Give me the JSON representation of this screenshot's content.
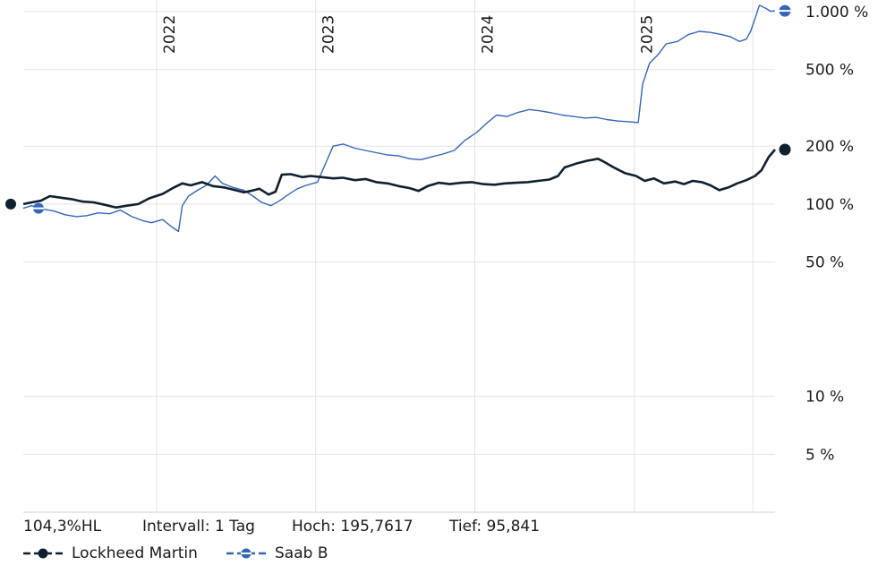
{
  "chart_data": {
    "type": "line",
    "y_scale": "log",
    "y_ticks": [
      {
        "value": 5,
        "label": "5 %"
      },
      {
        "value": 10,
        "label": "10 %"
      },
      {
        "value": 50,
        "label": "50 %"
      },
      {
        "value": 100,
        "label": "100 %"
      },
      {
        "value": 200,
        "label": "200 %"
      },
      {
        "value": 500,
        "label": "500 %"
      },
      {
        "value": 1000,
        "label": "1.000 %"
      }
    ],
    "x_ticks": [
      "2022",
      "2023",
      "2024",
      "2025"
    ],
    "ylim": [
      2.5,
      1150
    ],
    "xlim": [
      "2021-03-01",
      "2025-11-20"
    ],
    "grid": true,
    "series": [
      {
        "name": "Lockheed Martin",
        "color": "#0f2130",
        "points": [
          [
            "2021-03-01",
            100
          ],
          [
            "2021-03-20",
            102
          ],
          [
            "2021-04-10",
            104
          ],
          [
            "2021-05-01",
            110
          ],
          [
            "2021-05-25",
            108
          ],
          [
            "2021-06-20",
            106
          ],
          [
            "2021-07-15",
            103
          ],
          [
            "2021-08-10",
            102
          ],
          [
            "2021-09-05",
            99
          ],
          [
            "2021-09-30",
            96
          ],
          [
            "2021-10-25",
            98
          ],
          [
            "2021-11-20",
            100
          ],
          [
            "2021-12-15",
            107
          ],
          [
            "2022-01-15",
            113
          ],
          [
            "2022-02-10",
            122
          ],
          [
            "2022-03-01",
            128
          ],
          [
            "2022-03-20",
            125
          ],
          [
            "2022-04-15",
            130
          ],
          [
            "2022-05-10",
            124
          ],
          [
            "2022-06-05",
            122
          ],
          [
            "2022-07-01",
            118
          ],
          [
            "2022-07-20",
            115
          ],
          [
            "2022-08-05",
            117
          ],
          [
            "2022-08-25",
            120
          ],
          [
            "2022-09-15",
            112
          ],
          [
            "2022-10-01",
            116
          ],
          [
            "2022-10-15",
            142
          ],
          [
            "2022-11-05",
            143
          ],
          [
            "2022-12-01",
            138
          ],
          [
            "2022-12-20",
            140
          ],
          [
            "2023-01-15",
            138
          ],
          [
            "2023-02-10",
            136
          ],
          [
            "2023-03-05",
            137
          ],
          [
            "2023-04-01",
            133
          ],
          [
            "2023-04-25",
            135
          ],
          [
            "2023-05-20",
            130
          ],
          [
            "2023-06-15",
            128
          ],
          [
            "2023-07-10",
            124
          ],
          [
            "2023-08-05",
            121
          ],
          [
            "2023-08-25",
            117
          ],
          [
            "2023-09-15",
            124
          ],
          [
            "2023-10-10",
            129
          ],
          [
            "2023-11-05",
            127
          ],
          [
            "2023-12-01",
            129
          ],
          [
            "2023-12-25",
            130
          ],
          [
            "2024-01-20",
            127
          ],
          [
            "2024-02-15",
            126
          ],
          [
            "2024-03-10",
            128
          ],
          [
            "2024-04-05",
            129
          ],
          [
            "2024-05-01",
            130
          ],
          [
            "2024-05-25",
            132
          ],
          [
            "2024-06-20",
            134
          ],
          [
            "2024-07-10",
            140
          ],
          [
            "2024-07-25",
            155
          ],
          [
            "2024-08-20",
            162
          ],
          [
            "2024-09-15",
            168
          ],
          [
            "2024-10-10",
            172
          ],
          [
            "2024-10-25",
            165
          ],
          [
            "2024-11-15",
            155
          ],
          [
            "2024-12-10",
            145
          ],
          [
            "2025-01-05",
            140
          ],
          [
            "2025-01-25",
            132
          ],
          [
            "2025-02-15",
            136
          ],
          [
            "2025-03-10",
            128
          ],
          [
            "2025-04-05",
            131
          ],
          [
            "2025-04-25",
            127
          ],
          [
            "2025-05-15",
            132
          ],
          [
            "2025-06-05",
            130
          ],
          [
            "2025-06-25",
            125
          ],
          [
            "2025-07-15",
            118
          ],
          [
            "2025-08-05",
            122
          ],
          [
            "2025-08-25",
            128
          ],
          [
            "2025-09-15",
            133
          ],
          [
            "2025-10-05",
            140
          ],
          [
            "2025-10-20",
            150
          ],
          [
            "2025-11-05",
            175
          ],
          [
            "2025-11-20",
            192
          ]
        ]
      },
      {
        "name": "Saab B",
        "color": "#3366bb",
        "points": [
          [
            "2021-03-01",
            95
          ],
          [
            "2021-03-20",
            98
          ],
          [
            "2021-04-15",
            94
          ],
          [
            "2021-05-10",
            92
          ],
          [
            "2021-06-05",
            88
          ],
          [
            "2021-07-01",
            86
          ],
          [
            "2021-07-25",
            87
          ],
          [
            "2021-08-20",
            90
          ],
          [
            "2021-09-15",
            89
          ],
          [
            "2021-10-10",
            93
          ],
          [
            "2021-11-05",
            86
          ],
          [
            "2021-11-30",
            82
          ],
          [
            "2021-12-20",
            80
          ],
          [
            "2022-01-15",
            83
          ],
          [
            "2022-02-05",
            76
          ],
          [
            "2022-02-20",
            72
          ],
          [
            "2022-03-01",
            98
          ],
          [
            "2022-03-15",
            110
          ],
          [
            "2022-04-05",
            118
          ],
          [
            "2022-04-25",
            125
          ],
          [
            "2022-05-15",
            140
          ],
          [
            "2022-06-01",
            128
          ],
          [
            "2022-06-25",
            122
          ],
          [
            "2022-07-20",
            118
          ],
          [
            "2022-08-10",
            110
          ],
          [
            "2022-08-30",
            102
          ],
          [
            "2022-09-20",
            98
          ],
          [
            "2022-10-10",
            104
          ],
          [
            "2022-10-30",
            112
          ],
          [
            "2022-11-20",
            120
          ],
          [
            "2022-12-10",
            125
          ],
          [
            "2023-01-05",
            130
          ],
          [
            "2023-01-25",
            165
          ],
          [
            "2023-02-10",
            200
          ],
          [
            "2023-03-05",
            205
          ],
          [
            "2023-04-01",
            195
          ],
          [
            "2023-04-25",
            190
          ],
          [
            "2023-05-20",
            185
          ],
          [
            "2023-06-15",
            180
          ],
          [
            "2023-07-10",
            178
          ],
          [
            "2023-08-05",
            172
          ],
          [
            "2023-08-30",
            170
          ],
          [
            "2023-09-25",
            176
          ],
          [
            "2023-10-20",
            182
          ],
          [
            "2023-11-15",
            190
          ],
          [
            "2023-12-10",
            215
          ],
          [
            "2024-01-05",
            235
          ],
          [
            "2024-01-30",
            265
          ],
          [
            "2024-02-20",
            290
          ],
          [
            "2024-03-15",
            285
          ],
          [
            "2024-04-10",
            300
          ],
          [
            "2024-05-05",
            310
          ],
          [
            "2024-05-30",
            305
          ],
          [
            "2024-06-25",
            298
          ],
          [
            "2024-07-20",
            290
          ],
          [
            "2024-08-15",
            285
          ],
          [
            "2024-09-10",
            280
          ],
          [
            "2024-10-05",
            282
          ],
          [
            "2024-10-30",
            275
          ],
          [
            "2024-11-25",
            270
          ],
          [
            "2024-12-20",
            268
          ],
          [
            "2025-01-10",
            265
          ],
          [
            "2025-01-20",
            420
          ],
          [
            "2025-02-05",
            540
          ],
          [
            "2025-02-25",
            600
          ],
          [
            "2025-03-15",
            680
          ],
          [
            "2025-04-10",
            700
          ],
          [
            "2025-05-05",
            760
          ],
          [
            "2025-05-30",
            790
          ],
          [
            "2025-06-25",
            780
          ],
          [
            "2025-07-20",
            760
          ],
          [
            "2025-08-10",
            740
          ],
          [
            "2025-08-30",
            700
          ],
          [
            "2025-09-15",
            720
          ],
          [
            "2025-09-25",
            790
          ],
          [
            "2025-10-05",
            920
          ],
          [
            "2025-10-15",
            1080
          ],
          [
            "2025-10-30",
            1040
          ],
          [
            "2025-11-10",
            1005
          ],
          [
            "2025-11-20",
            1010
          ]
        ]
      }
    ]
  },
  "stats": {
    "range": "104,3%HL",
    "interval": "Intervall: 1 Tag",
    "high": "Hoch: 195,7617",
    "low": "Tief:  95,841"
  },
  "legend": [
    {
      "label": "Lockheed Martin",
      "color": "#0f2130"
    },
    {
      "label": "Saab B",
      "color": "#3366bb"
    }
  ]
}
